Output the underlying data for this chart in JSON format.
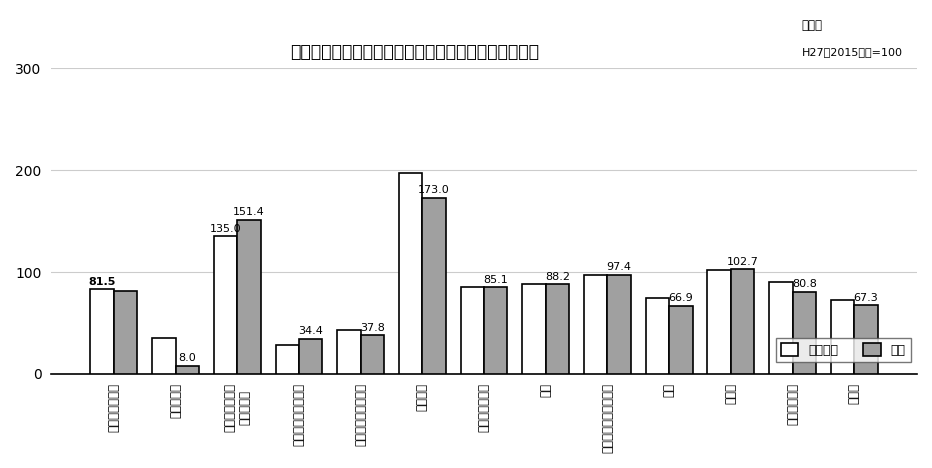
{
  "title": "業種別の生産指数（原指数）の当月と前年同月の比較",
  "subtitle_line1": "原指数",
  "subtitle_line2": "H27（2015）年=100",
  "categories": [
    "鉱工業（総合）",
    "鉄鋼・金属",
    "汎用・生産用・\n業務用機械",
    "電子部品・デバイス",
    "電気・情報通信機械",
    "輸送機械",
    "窯業・土石製品",
    "化学",
    "パルプ・紙・紙加工品",
    "繊維",
    "食料品",
    "木材・木製品",
    "その他"
  ],
  "prev_year_values": [
    83.0,
    35.0,
    135.0,
    28.0,
    43.0,
    197.0,
    85.0,
    88.0,
    97.0,
    75.0,
    102.0,
    90.0,
    73.0
  ],
  "current_values": [
    81.5,
    8.0,
    151.4,
    34.4,
    37.8,
    173.0,
    85.1,
    88.2,
    97.4,
    66.9,
    102.7,
    80.8,
    67.3
  ],
  "label_on_prev": [
    true,
    false,
    true,
    false,
    false,
    true,
    false,
    false,
    false,
    false,
    false,
    false,
    false
  ],
  "label_on_curr": [
    false,
    true,
    true,
    true,
    true,
    true,
    true,
    true,
    true,
    true,
    true,
    true,
    true
  ],
  "prev_year_label_values": [
    "81.5",
    "",
    "135.0",
    "",
    "",
    "",
    "",
    "",
    "",
    "",
    "",
    "",
    ""
  ],
  "current_label_values": [
    "",
    "8.0",
    "151.4",
    "34.4",
    "37.8",
    "173.0",
    "85.1",
    "88.2",
    "97.4",
    "66.9",
    "102.7",
    "80.8",
    "67.3"
  ],
  "bar_color_prev": "#ffffff",
  "bar_color_curr": "#a0a0a0",
  "bar_edge_color": "#000000",
  "legend_labels": [
    "前年同月",
    "当月"
  ],
  "ylim": [
    0,
    300
  ],
  "yticks": [
    0,
    100,
    200,
    300
  ],
  "background_color": "#ffffff",
  "grid_color": "#cccccc",
  "bar_width": 0.38
}
